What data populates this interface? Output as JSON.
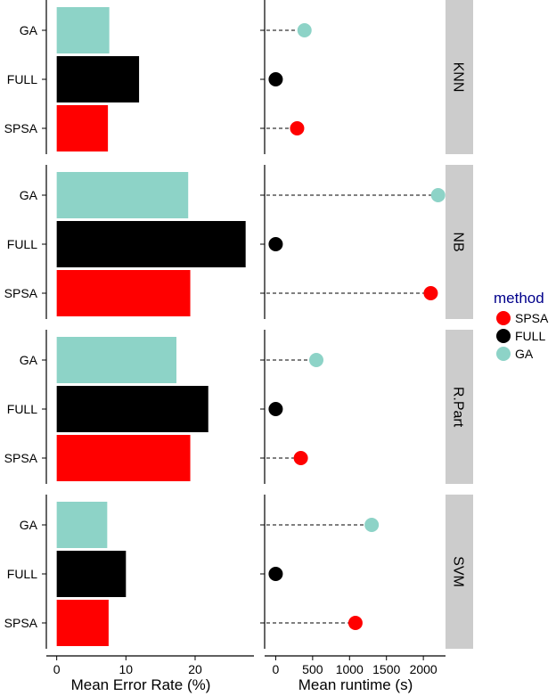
{
  "chart_data": {
    "type": "bar",
    "facets": [
      "KNN",
      "NB",
      "R.Part",
      "SVM"
    ],
    "categories": [
      "GA",
      "FULL",
      "SPSA"
    ],
    "legend": {
      "title": "method",
      "title_color": "#00008B",
      "position": "right",
      "items": [
        {
          "label": "SPSA",
          "color": "#FF0000"
        },
        {
          "label": "FULL",
          "color": "#000000"
        },
        {
          "label": "GA",
          "color": "#8DD3C7"
        }
      ]
    },
    "colors": {
      "GA": "#8DD3C7",
      "FULL": "#000000",
      "SPSA": "#FF0000",
      "strip": "#CCCCCC"
    },
    "error_panel": {
      "xlabel": "Mean Error Rate (%)",
      "xlim": [
        -1.5,
        28.5
      ],
      "ticks": [
        0,
        10,
        20
      ],
      "tick_labels": [
        "0",
        "10",
        "20"
      ],
      "series": [
        {
          "facet": "KNN",
          "GA": 7.6,
          "FULL": 11.9,
          "SPSA": 7.4
        },
        {
          "facet": "NB",
          "GA": 19.0,
          "FULL": 27.3,
          "SPSA": 19.3
        },
        {
          "facet": "R.Part",
          "GA": 17.3,
          "FULL": 21.9,
          "SPSA": 19.3
        },
        {
          "facet": "SVM",
          "GA": 7.3,
          "FULL": 10.0,
          "SPSA": 7.5
        }
      ]
    },
    "runtime_panel": {
      "xlabel": "Mean runtime (s)",
      "xlim": [
        -150,
        2300
      ],
      "ticks": [
        0,
        500,
        1000,
        1500,
        2000
      ],
      "tick_labels": [
        "0",
        "500",
        "1000",
        "1500",
        "2000"
      ],
      "series": [
        {
          "facet": "KNN",
          "GA": 390,
          "FULL": 0,
          "SPSA": 290
        },
        {
          "facet": "NB",
          "GA": 2200,
          "FULL": 0,
          "SPSA": 2100
        },
        {
          "facet": "R.Part",
          "GA": 550,
          "FULL": 0,
          "SPSA": 340
        },
        {
          "facet": "SVM",
          "GA": 1300,
          "FULL": 0,
          "SPSA": 1080
        }
      ]
    }
  }
}
